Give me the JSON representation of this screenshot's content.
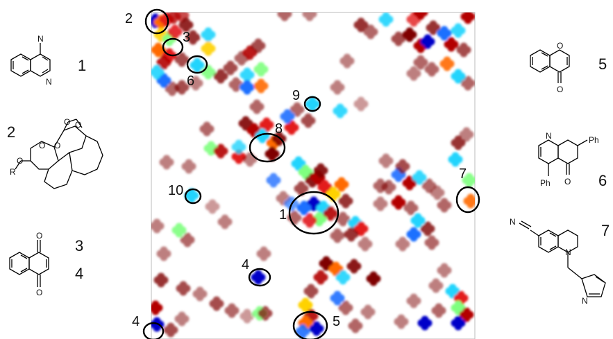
{
  "map_markers": [
    {
      "label": "1"
    },
    {
      "label": "2"
    },
    {
      "label": "3"
    },
    {
      "label": "4"
    },
    {
      "label": "4"
    },
    {
      "label": "5"
    },
    {
      "label": "6"
    },
    {
      "label": "7"
    },
    {
      "label": "8"
    },
    {
      "label": "9"
    },
    {
      "label": "10"
    }
  ],
  "structures": [
    {
      "label": "1",
      "atoms": [
        "N",
        "N"
      ]
    },
    {
      "label": "2",
      "atoms": [
        "O",
        "O",
        "O",
        "O",
        "O",
        "R"
      ]
    },
    {
      "label": "3",
      "atoms": [
        "O",
        "O"
      ]
    },
    {
      "label": "4",
      "atoms": []
    },
    {
      "label": "5",
      "atoms": [
        "O",
        "O"
      ]
    },
    {
      "label": "6",
      "atoms": [
        "N",
        "Ph",
        "Ph",
        "O"
      ]
    },
    {
      "label": "7",
      "atoms": [
        "N",
        "N",
        "N"
      ]
    }
  ],
  "colors": {
    "palette": [
      "#7f0000",
      "#b30000",
      "#e31a1c",
      "#ff6a00",
      "#ffd200",
      "#7fff7f",
      "#21d4fd",
      "#1e6fff",
      "#0000c8"
    ],
    "frame": "#bbbbbb",
    "ring": "#000000"
  }
}
